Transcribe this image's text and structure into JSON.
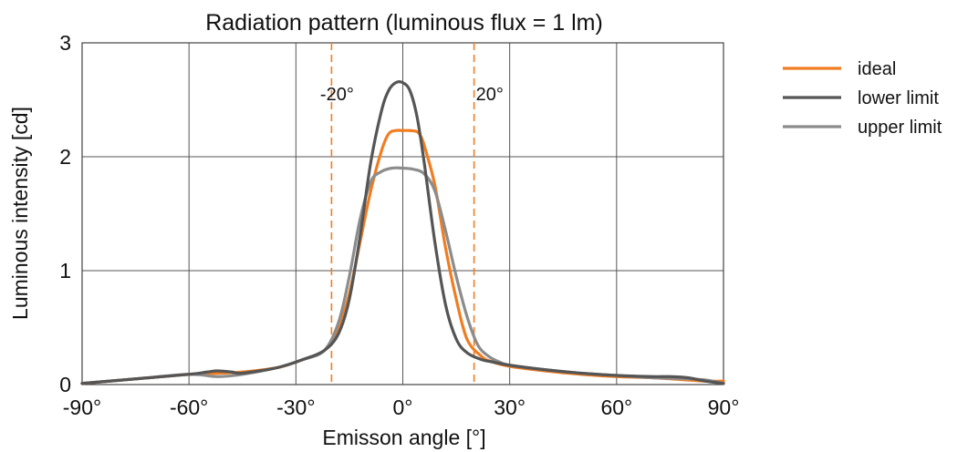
{
  "chart_data": {
    "type": "line",
    "title": "Radiation pattern (luminous flux = 1 lm)",
    "xlabel": "Emisson angle [°]",
    "ylabel": "Luminous intensity [cd]",
    "xlim": [
      -90,
      90
    ],
    "ylim": [
      0,
      3
    ],
    "x_ticks": [
      -90,
      -60,
      -30,
      0,
      30,
      60,
      90
    ],
    "x_tick_labels": [
      "-90°",
      "-60°",
      "-30°",
      "0°",
      "30°",
      "60°",
      "90°"
    ],
    "y_ticks": [
      0,
      1,
      2,
      3
    ],
    "y_tick_labels": [
      "0",
      "1",
      "2",
      "3"
    ],
    "grid": true,
    "legend_position": "right",
    "markers": [
      {
        "x": -20,
        "label": "-20°",
        "color": "#f07d22"
      },
      {
        "x": 20,
        "label": "20°",
        "color": "#f07d22"
      }
    ],
    "series": [
      {
        "name": "ideal",
        "color": "#f07d22",
        "x": [
          -90,
          -75,
          -60,
          -52,
          -45,
          -35,
          -28,
          -22,
          -18,
          -15,
          -12,
          -9,
          -6,
          -4,
          -2,
          0,
          2,
          4,
          5,
          6,
          9,
          12,
          15,
          18,
          22,
          25,
          30,
          40,
          50,
          60,
          70,
          80,
          85,
          90
        ],
        "y": [
          0.01,
          0.05,
          0.09,
          0.1,
          0.11,
          0.15,
          0.22,
          0.3,
          0.5,
          0.8,
          1.25,
          1.7,
          2.05,
          2.2,
          2.23,
          2.23,
          2.23,
          2.22,
          2.18,
          2.1,
          1.75,
          1.2,
          0.75,
          0.4,
          0.25,
          0.2,
          0.16,
          0.12,
          0.09,
          0.07,
          0.06,
          0.04,
          0.03,
          0.03
        ]
      },
      {
        "name": "lower limit",
        "color": "#555555",
        "x": [
          -90,
          -75,
          -60,
          -55,
          -52,
          -48,
          -45,
          -35,
          -28,
          -22,
          -18,
          -15,
          -12,
          -9,
          -6,
          -4,
          -2,
          0,
          2,
          4,
          6,
          9,
          12,
          15,
          18,
          22,
          25,
          30,
          40,
          50,
          60,
          70,
          75,
          80,
          85,
          90
        ],
        "y": [
          0.01,
          0.05,
          0.09,
          0.11,
          0.12,
          0.11,
          0.1,
          0.15,
          0.22,
          0.3,
          0.45,
          0.75,
          1.3,
          1.95,
          2.4,
          2.58,
          2.65,
          2.65,
          2.58,
          2.35,
          1.95,
          1.25,
          0.7,
          0.4,
          0.28,
          0.22,
          0.2,
          0.17,
          0.13,
          0.1,
          0.08,
          0.07,
          0.07,
          0.06,
          0.03,
          0.01
        ]
      },
      {
        "name": "upper limit",
        "color": "#8c8c8c",
        "x": [
          -90,
          -75,
          -60,
          -52,
          -45,
          -35,
          -28,
          -22,
          -18,
          -15,
          -12,
          -9,
          -6,
          -3,
          0,
          3,
          6,
          9,
          12,
          15,
          18,
          21,
          24,
          27,
          30,
          40,
          50,
          60,
          70,
          80,
          85,
          90
        ],
        "y": [
          0.01,
          0.05,
          0.09,
          0.07,
          0.09,
          0.15,
          0.22,
          0.3,
          0.55,
          0.95,
          1.45,
          1.78,
          1.87,
          1.9,
          1.9,
          1.89,
          1.85,
          1.7,
          1.35,
          0.95,
          0.6,
          0.35,
          0.25,
          0.2,
          0.17,
          0.13,
          0.1,
          0.08,
          0.06,
          0.05,
          0.04,
          0.01
        ]
      }
    ]
  }
}
